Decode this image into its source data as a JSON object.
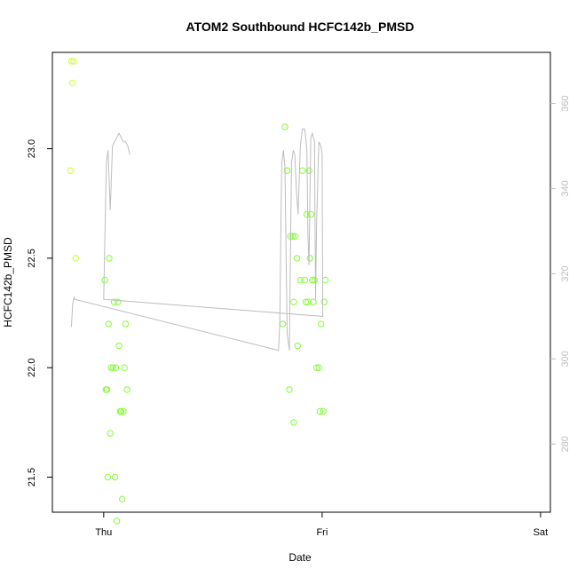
{
  "chart_data": {
    "type": "scatter",
    "title": "ATOM2 Southbound HCFC142b_PMSD",
    "xlabel": "Date",
    "ylabel": "HCFC142b_PMSD",
    "x_ticks": [
      "Thu",
      "Fri",
      "Sat"
    ],
    "x_tick_days": [
      0,
      1,
      2
    ],
    "xlim_days": [
      -0.235,
      2.045
    ],
    "ylim": [
      21.34,
      23.44
    ],
    "y_ticks": [
      21.5,
      22.0,
      22.5,
      23.0
    ],
    "y_tick_labels": [
      "21.5",
      "22.0",
      "22.5",
      "23.0"
    ],
    "y2lim": [
      264,
      372
    ],
    "y2_ticks": [
      280,
      300,
      320,
      340,
      360
    ],
    "y2_tick_labels": [
      "280",
      "300",
      "320",
      "340",
      "360"
    ],
    "grid": false,
    "legend": "none",
    "colors": {
      "line": "#bdbdbd",
      "points_early": "#ccff33",
      "points": "#80ff33",
      "axis": "#000000",
      "axis_right": "#bdbdbd"
    },
    "series": [
      {
        "kind": "points",
        "color_key": "points_early",
        "points": [
          [
            -0.148,
            23.4
          ],
          [
            -0.138,
            23.4
          ],
          [
            -0.143,
            23.3
          ],
          [
            -0.152,
            22.9
          ],
          [
            -0.128,
            22.5
          ]
        ]
      },
      {
        "kind": "points",
        "color_key": "points",
        "points": [
          [
            0.005,
            22.4
          ],
          [
            0.01,
            21.9
          ],
          [
            0.015,
            21.9
          ],
          [
            0.018,
            21.5
          ],
          [
            0.022,
            22.2
          ],
          [
            0.025,
            22.5
          ],
          [
            0.03,
            21.7
          ],
          [
            0.035,
            22.0
          ],
          [
            0.042,
            22.0
          ],
          [
            0.048,
            22.3
          ],
          [
            0.052,
            21.5
          ],
          [
            0.055,
            22.0
          ],
          [
            0.06,
            21.3
          ],
          [
            0.065,
            22.3
          ],
          [
            0.07,
            22.1
          ],
          [
            0.075,
            21.8
          ],
          [
            0.08,
            21.8
          ],
          [
            0.085,
            21.4
          ],
          [
            0.09,
            21.8
          ],
          [
            0.095,
            22.0
          ],
          [
            0.1,
            22.2
          ],
          [
            0.107,
            21.9
          ]
        ]
      },
      {
        "kind": "points",
        "color_key": "points",
        "points": [
          [
            0.83,
            23.1
          ],
          [
            0.84,
            22.9
          ],
          [
            0.85,
            21.9
          ],
          [
            0.855,
            22.6
          ],
          [
            0.865,
            22.6
          ],
          [
            0.87,
            22.3
          ],
          [
            0.875,
            22.6
          ],
          [
            0.885,
            22.5
          ],
          [
            0.9,
            22.4
          ],
          [
            0.91,
            22.9
          ],
          [
            0.92,
            22.4
          ],
          [
            0.925,
            22.3
          ],
          [
            0.93,
            22.7
          ],
          [
            0.935,
            22.3
          ],
          [
            0.94,
            22.9
          ],
          [
            0.945,
            22.5
          ],
          [
            0.95,
            22.7
          ],
          [
            0.955,
            22.4
          ],
          [
            0.96,
            22.3
          ],
          [
            0.965,
            22.4
          ],
          [
            0.975,
            22.0
          ],
          [
            0.985,
            22.0
          ],
          [
            0.99,
            21.8
          ],
          [
            0.995,
            22.2
          ],
          [
            1.005,
            21.8
          ],
          [
            1.01,
            22.3
          ],
          [
            1.015,
            22.4
          ],
          [
            0.82,
            22.2
          ],
          [
            0.888,
            22.1
          ],
          [
            0.87,
            21.75
          ]
        ]
      },
      {
        "kind": "line",
        "color_key": "line",
        "points": [
          [
            -0.148,
            307.5
          ],
          [
            -0.142,
            313
          ],
          [
            -0.136,
            314.5
          ],
          [
            -0.132,
            314
          ],
          [
            0.8,
            302
          ],
          [
            0.806,
            308
          ],
          [
            0.815,
            346
          ],
          [
            0.823,
            349
          ],
          [
            0.83,
            345
          ],
          [
            0.84,
            306
          ],
          [
            0.85,
            302
          ],
          [
            0.86,
            346
          ],
          [
            0.868,
            349
          ],
          [
            0.875,
            348
          ],
          [
            0.882,
            340
          ],
          [
            0.89,
            334
          ],
          [
            0.9,
            350
          ],
          [
            0.91,
            354
          ],
          [
            0.92,
            354
          ],
          [
            0.925,
            352
          ],
          [
            0.93,
            349
          ],
          [
            0.935,
            329
          ],
          [
            0.94,
            322
          ],
          [
            0.948,
            352
          ],
          [
            0.955,
            353
          ],
          [
            0.96,
            352
          ],
          [
            0.965,
            351
          ],
          [
            0.97,
            314
          ],
          [
            0.975,
            332
          ],
          [
            0.985,
            351
          ],
          [
            0.995,
            350
          ],
          [
            1.0,
            348
          ],
          [
            1.003,
            310
          ],
          [
            0.0,
            314
          ],
          [
            0.006,
            330
          ],
          [
            0.012,
            346
          ],
          [
            0.02,
            349
          ],
          [
            0.03,
            335
          ],
          [
            0.04,
            350
          ],
          [
            0.05,
            351
          ],
          [
            0.06,
            352
          ],
          [
            0.07,
            353
          ],
          [
            0.08,
            352
          ],
          [
            0.09,
            351
          ],
          [
            0.1,
            351
          ],
          [
            0.11,
            350
          ],
          [
            0.12,
            348
          ]
        ]
      }
    ]
  }
}
